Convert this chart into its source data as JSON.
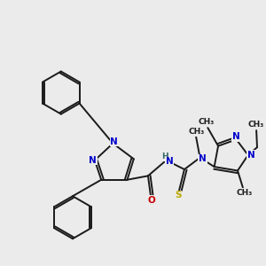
{
  "bg_color": "#ebebeb",
  "bond_color": "#1a1a1a",
  "bond_lw": 1.4,
  "atom_colors": {
    "N": "#0000cc",
    "O": "#cc0000",
    "S": "#bbaa00",
    "C": "#1a1a1a",
    "H": "#336666"
  },
  "fs": 7.5,
  "fs_small": 6.5,
  "xlim": [
    0,
    10
  ],
  "ylim": [
    0,
    10
  ]
}
